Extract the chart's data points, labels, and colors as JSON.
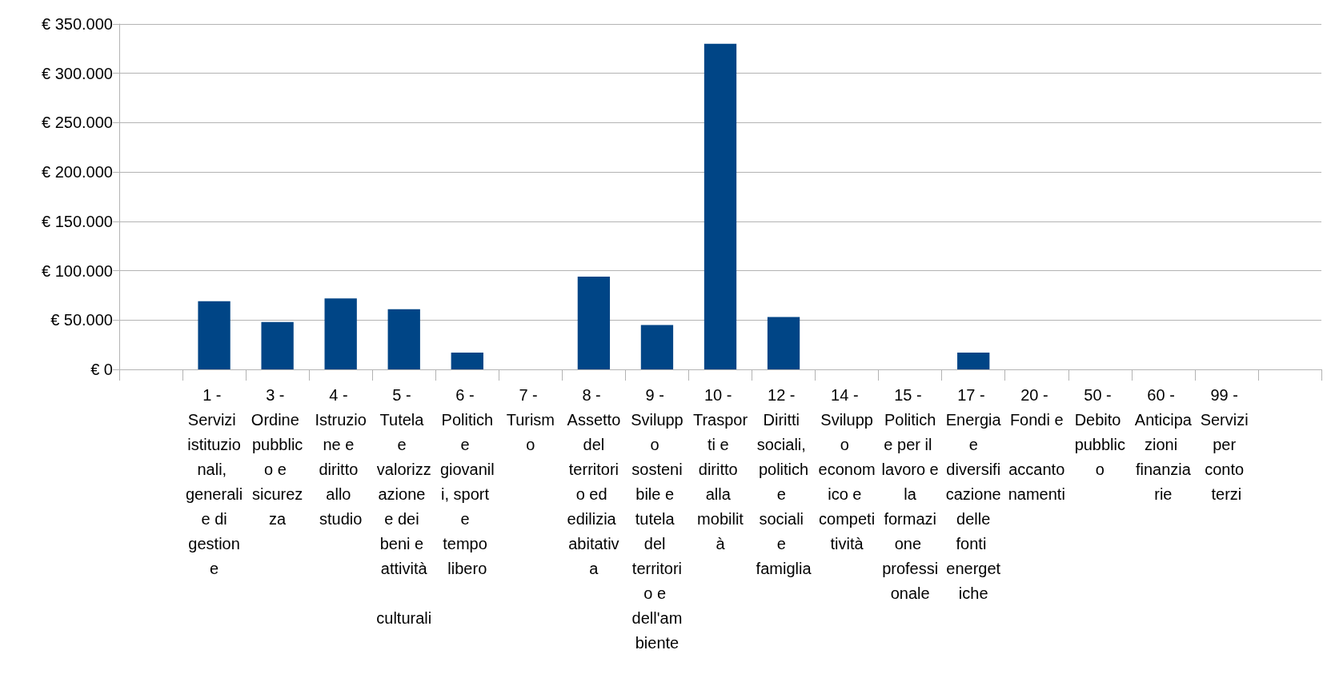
{
  "chart_data": {
    "type": "bar",
    "categories": [
      null,
      "1 - Servizi istituzionali, generali e di gestione",
      "3 - Ordine pubblico e sicurezza",
      "4 - Istruzione e diritto allo studio",
      "5 - Tutela e valorizzazione e dei beni e attività culturali",
      "6 - Politiche giovanili, sport e tempo libero",
      "7 - Turismo",
      "8 - Assetto del territorio ed edilizia abitativa",
      "9 - Sviluppo sostenibile e tutela del territorio e dell'ambiente",
      "10 - Trasporti e diritto alla mobilità",
      "12 - Diritti sociali, politiche sociali e famiglia",
      "14 - Sviluppo economico e competitività",
      "15 - Politiche per il lavoro e la formazione professionale",
      "17 - Energia e diversificazione delle fonti energetiche",
      "20 - Fondi e accantonamenti",
      "50 - Debito pubblico",
      "60 - Anticipazioni finanziarie",
      "99 - Servizi per conto terzi",
      null
    ],
    "values": [
      null,
      69000,
      48000,
      72000,
      61000,
      17000,
      0,
      94000,
      45000,
      330000,
      53000,
      0,
      0,
      17000,
      0,
      0,
      0,
      0,
      null
    ],
    "color": "#004586",
    "ylim": [
      0,
      350000
    ],
    "yticks": [
      {
        "value": 0,
        "label": "€ 0"
      },
      {
        "value": 50000,
        "label": "€ 50.000"
      },
      {
        "value": 100000,
        "label": "€ 100.000"
      },
      {
        "value": 150000,
        "label": "€ 150.000"
      },
      {
        "value": 200000,
        "label": "€ 200.000"
      },
      {
        "value": 250000,
        "label": "€ 250.000"
      },
      {
        "value": 300000,
        "label": "€ 300.000"
      },
      {
        "value": 350000,
        "label": "€ 350.000"
      }
    ],
    "grid": "y"
  }
}
